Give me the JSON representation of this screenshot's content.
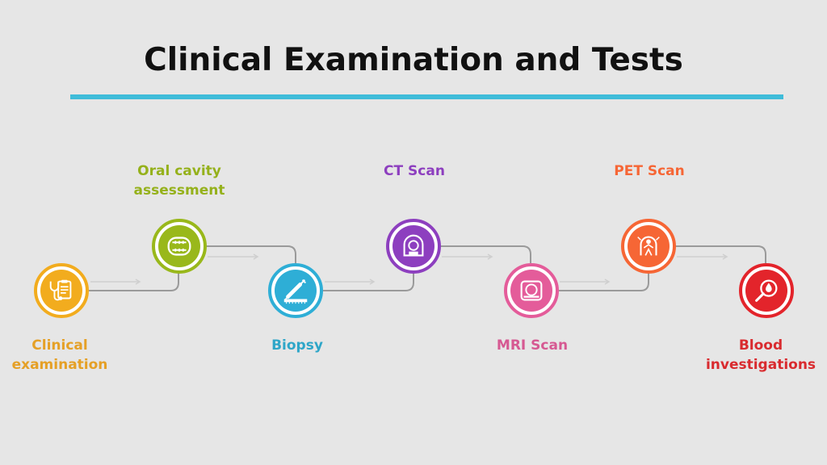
{
  "title": "Clinical Examination and Tests",
  "accent": "#3fbcd9",
  "steps": [
    {
      "label": [
        "Clinical",
        "examination"
      ],
      "icon": "clipboard-stethoscope-icon",
      "color": "#f2ac1e",
      "label_color": "#e5a026"
    },
    {
      "label": [
        "Oral cavity",
        "assessment"
      ],
      "icon": "open-mouth-icon",
      "color": "#99b81b",
      "label_color": "#95b11b"
    },
    {
      "label": [
        "Biopsy"
      ],
      "icon": "syringe-icon",
      "color": "#2eaed6",
      "label_color": "#2ea6c8"
    },
    {
      "label": [
        "CT Scan"
      ],
      "icon": "ct-scanner-icon",
      "color": "#8d3fbf",
      "label_color": "#8d3fbf"
    },
    {
      "label": [
        "MRI Scan"
      ],
      "icon": "mri-scanner-icon",
      "color": "#e45c9a",
      "label_color": "#d65992"
    },
    {
      "label": [
        "PET Scan"
      ],
      "icon": "pet-scanner-icon",
      "color": "#f66635",
      "label_color": "#f66635"
    },
    {
      "label": [
        "Blood",
        "investigations"
      ],
      "icon": "blood-drop-magnifier-icon",
      "color": "#e3242b",
      "label_color": "#d92b2f"
    }
  ]
}
